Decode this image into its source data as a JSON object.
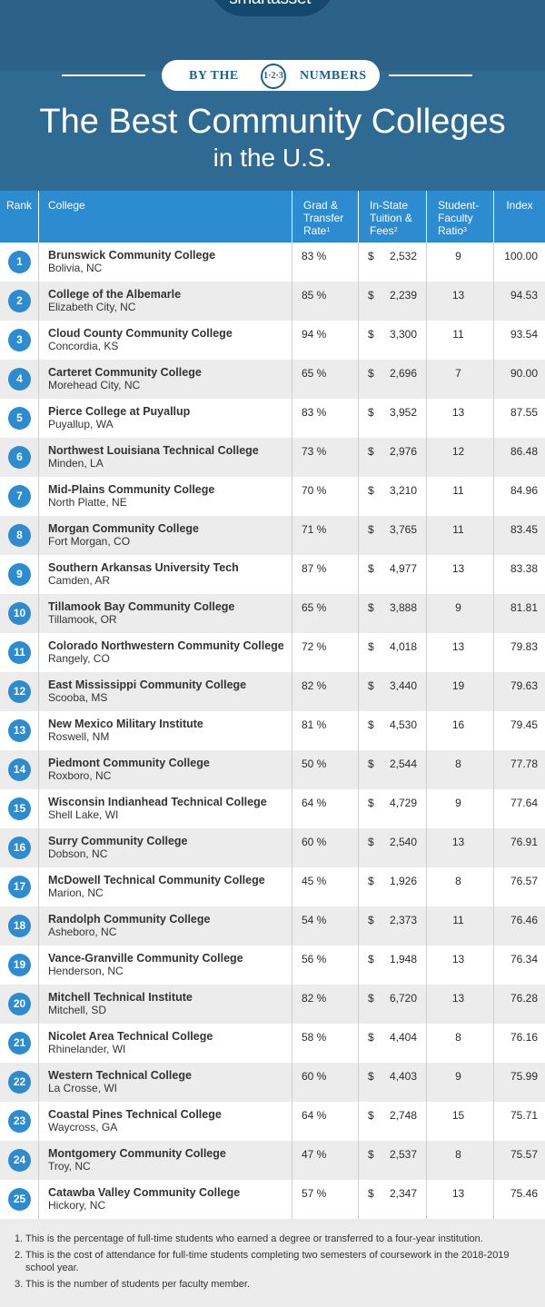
{
  "brand": {
    "name": "smartasset",
    "tm": "™"
  },
  "badge": {
    "left": "BY THE",
    "circle": "1·2·3",
    "right": "NUMBERS"
  },
  "title": {
    "line1": "The Best Community Colleges",
    "line2": "in the U.S."
  },
  "columns": {
    "rank": "Rank",
    "college": "College",
    "grad_l1": "Grad &",
    "grad_l2": "Transfer",
    "grad_l3": "Rate",
    "grad_sup": "1",
    "tuition_l1": "In-State",
    "tuition_l2": "Tuition &",
    "tuition_l3": "Fees",
    "tuition_sup": "2",
    "ratio_l1": "Student-",
    "ratio_l2": "Faculty",
    "ratio_l3": "Ratio",
    "ratio_sup": "3",
    "index": "Index"
  },
  "rows": [
    {
      "rank": "1",
      "name": "Brunswick Community College",
      "location": "Bolivia, NC",
      "grad": "83 %",
      "dollar": "$",
      "tuition": "2,532",
      "ratio": "9",
      "index": "100.00"
    },
    {
      "rank": "2",
      "name": "College of the Albemarle",
      "location": "Elizabeth City, NC",
      "grad": "85 %",
      "dollar": "$",
      "tuition": "2,239",
      "ratio": "13",
      "index": "94.53"
    },
    {
      "rank": "3",
      "name": "Cloud County Community College",
      "location": "Concordia, KS",
      "grad": "94 %",
      "dollar": "$",
      "tuition": "3,300",
      "ratio": "11",
      "index": "93.54"
    },
    {
      "rank": "4",
      "name": "Carteret Community College",
      "location": "Morehead City, NC",
      "grad": "65 %",
      "dollar": "$",
      "tuition": "2,696",
      "ratio": "7",
      "index": "90.00"
    },
    {
      "rank": "5",
      "name": "Pierce College at Puyallup",
      "location": "Puyallup, WA",
      "grad": "83 %",
      "dollar": "$",
      "tuition": "3,952",
      "ratio": "13",
      "index": "87.55"
    },
    {
      "rank": "6",
      "name": "Northwest Louisiana Technical College",
      "location": "Minden, LA",
      "grad": "73 %",
      "dollar": "$",
      "tuition": "2,976",
      "ratio": "12",
      "index": "86.48"
    },
    {
      "rank": "7",
      "name": "Mid-Plains Community College",
      "location": "North Platte, NE",
      "grad": "70 %",
      "dollar": "$",
      "tuition": "3,210",
      "ratio": "11",
      "index": "84.96"
    },
    {
      "rank": "8",
      "name": "Morgan Community College",
      "location": "Fort Morgan, CO",
      "grad": "71 %",
      "dollar": "$",
      "tuition": "3,765",
      "ratio": "11",
      "index": "83.45"
    },
    {
      "rank": "9",
      "name": "Southern Arkansas University Tech",
      "location": "Camden, AR",
      "grad": "87 %",
      "dollar": "$",
      "tuition": "4,977",
      "ratio": "13",
      "index": "83.38"
    },
    {
      "rank": "10",
      "name": "Tillamook Bay Community College",
      "location": "Tillamook, OR",
      "grad": "65 %",
      "dollar": "$",
      "tuition": "3,888",
      "ratio": "9",
      "index": "81.81"
    },
    {
      "rank": "11",
      "name": "Colorado Northwestern Community College",
      "location": "Rangely, CO",
      "grad": "72 %",
      "dollar": "$",
      "tuition": "4,018",
      "ratio": "13",
      "index": "79.83"
    },
    {
      "rank": "12",
      "name": "East Mississippi Community College",
      "location": "Scooba, MS",
      "grad": "82 %",
      "dollar": "$",
      "tuition": "3,440",
      "ratio": "19",
      "index": "79.63"
    },
    {
      "rank": "13",
      "name": "New Mexico Military Institute",
      "location": "Roswell, NM",
      "grad": "81 %",
      "dollar": "$",
      "tuition": "4,530",
      "ratio": "16",
      "index": "79.45"
    },
    {
      "rank": "14",
      "name": "Piedmont Community College",
      "location": "Roxboro, NC",
      "grad": "50 %",
      "dollar": "$",
      "tuition": "2,544",
      "ratio": "8",
      "index": "77.78"
    },
    {
      "rank": "15",
      "name": "Wisconsin Indianhead Technical College",
      "location": "Shell Lake, WI",
      "grad": "64 %",
      "dollar": "$",
      "tuition": "4,729",
      "ratio": "9",
      "index": "77.64"
    },
    {
      "rank": "16",
      "name": "Surry Community College",
      "location": "Dobson, NC",
      "grad": "60 %",
      "dollar": "$",
      "tuition": "2,540",
      "ratio": "13",
      "index": "76.91"
    },
    {
      "rank": "17",
      "name": "McDowell Technical Community College",
      "location": "Marion, NC",
      "grad": "45 %",
      "dollar": "$",
      "tuition": "1,926",
      "ratio": "8",
      "index": "76.57"
    },
    {
      "rank": "18",
      "name": "Randolph Community College",
      "location": "Asheboro, NC",
      "grad": "54 %",
      "dollar": "$",
      "tuition": "2,373",
      "ratio": "11",
      "index": "76.46"
    },
    {
      "rank": "19",
      "name": "Vance-Granville Community College",
      "location": "Henderson, NC",
      "grad": "56 %",
      "dollar": "$",
      "tuition": "1,948",
      "ratio": "13",
      "index": "76.34"
    },
    {
      "rank": "20",
      "name": "Mitchell Technical Institute",
      "location": "Mitchell, SD",
      "grad": "82 %",
      "dollar": "$",
      "tuition": "6,720",
      "ratio": "13",
      "index": "76.28"
    },
    {
      "rank": "21",
      "name": "Nicolet Area Technical College",
      "location": "Rhinelander, WI",
      "grad": "58 %",
      "dollar": "$",
      "tuition": "4,404",
      "ratio": "8",
      "index": "76.16"
    },
    {
      "rank": "22",
      "name": "Western Technical College",
      "location": "La Crosse, WI",
      "grad": "60 %",
      "dollar": "$",
      "tuition": "4,403",
      "ratio": "9",
      "index": "75.99"
    },
    {
      "rank": "23",
      "name": "Coastal Pines Technical College",
      "location": "Waycross, GA",
      "grad": "64 %",
      "dollar": "$",
      "tuition": "2,748",
      "ratio": "15",
      "index": "75.71"
    },
    {
      "rank": "24",
      "name": "Montgomery Community College",
      "location": "Troy, NC",
      "grad": "47 %",
      "dollar": "$",
      "tuition": "2,537",
      "ratio": "8",
      "index": "75.57"
    },
    {
      "rank": "25",
      "name": "Catawba Valley Community College",
      "location": "Hickory, NC",
      "grad": "57 %",
      "dollar": "$",
      "tuition": "2,347",
      "ratio": "13",
      "index": "75.46"
    }
  ],
  "footnotes": [
    {
      "num": "1.",
      "text": "This is the percentage of full-time students who earned a degree or transferred to a four-year institution."
    },
    {
      "num": "2.",
      "text": "This is the cost of attendance for full-time students completing two semesters of coursework in the 2018-2019 school year."
    },
    {
      "num": "3.",
      "text": "This is the number of students per faculty member."
    }
  ],
  "colors": {
    "header_bg": "#2f6a92",
    "table_header": "#2d8bcf",
    "rank_circle": "#2d8bcf",
    "alt_row": "#ececec"
  }
}
